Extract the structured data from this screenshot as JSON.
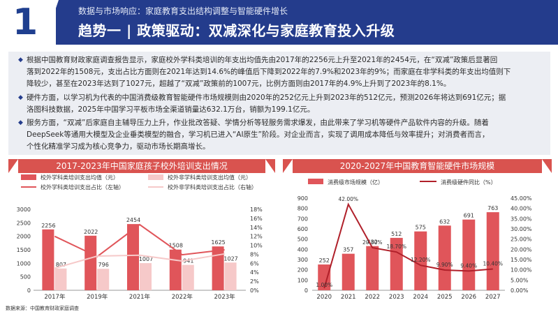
{
  "header": {
    "number": "1",
    "subtitle": "数据与市场响应：家庭教育支出结构调整与智能硬件增长",
    "title": "趋势一 | 政策驱动：双减深化与家庭教育投入升级"
  },
  "bullets": [
    {
      "line1": "根据中国教育财政家庭调查报告显示，家庭校外学科类培训的年支出均值先由2017年的2256元上升至2021年的2454元，在“双减”政策后显著回",
      "line2": "落到2022年的1508元，支出占比方面则在2021年达到14.6%的峰值后下降到2022年的7.9%和2023年的9%；而家庭在非学科类的年支出均值则下",
      "line3": "降较少，甚至在2023年达到了1027元，超越了“双减”政策前的1007元，比例方面则由2017年的4.9%上升到了2023年的8.1%。"
    },
    {
      "line1": "硬件方面，以学习机为代表的中国消费级教育智能硬件市场规模则由2020年的252亿元上升到2023年的512亿元，预测2026年将达到691亿元；据",
      "line2": "洛图科技数据，2025年中国学习平板市场全渠道销量达632.1万台，销额为199.1亿元。"
    },
    {
      "line1": "服务方面，“双减”后家庭自主辅导压力上升，作业批改答疑、学情分析等轻服务需求爆发，由此带来了学习机等硬件产品软件内容的升级。随着",
      "line2": "DeepSeek等通用大模型及企业垂类模型的融合，学习机已进入“AI原生”阶段。对企业而言，实现了调用成本降低与效率提升；对消费者而言，",
      "line3": "个性化精准学习成为核心竞争力，驱动市场长期高增长。"
    }
  ],
  "source": "数据来源：中国教育财政家庭调查",
  "chart_data": [
    {
      "type": "bar",
      "title": "2017-2023年中国家庭孩子校外培训支出情况",
      "categories": [
        "2017年",
        "2019年",
        "2021年",
        "2022年",
        "2023年"
      ],
      "series": [
        {
          "name": "校外学科类培训支出均值（元）",
          "kind": "bar",
          "axis": "left",
          "color": "#e0555a",
          "values": [
            2256,
            2022,
            2454,
            1508,
            1625
          ]
        },
        {
          "name": "校外非学科类培训支出均值（元）",
          "kind": "bar",
          "axis": "left",
          "color": "#f6c9c9",
          "values": [
            807,
            796,
            1007,
            941,
            1027
          ]
        },
        {
          "name": "校外学科类培训支出占比（左轴）",
          "kind": "line",
          "axis": "right",
          "color": "#e0555a",
          "values": [
            12.0,
            7.5,
            14.6,
            7.9,
            9.0
          ]
        },
        {
          "name": "校外非学科类培训支出占比（右轴）",
          "kind": "line",
          "axis": "right",
          "color": "#f6c9c9",
          "values": [
            4.9,
            7.6,
            7.8,
            6.5,
            8.1
          ]
        }
      ],
      "yticks_left": [
        "3000",
        "2500",
        "2000",
        "1500",
        "1000",
        "500",
        "0"
      ],
      "yticks_right": [
        "18%",
        "16%",
        "14%",
        "12%",
        "10%",
        "8%",
        "6%",
        "4%",
        "2%",
        "0%"
      ],
      "ylim": [
        0,
        3000
      ],
      "ylim_right": [
        0,
        18
      ],
      "legend": "top"
    },
    {
      "type": "bar",
      "title": "2020-2027年中国教育智能硬件市场规模",
      "categories": [
        "2020",
        "2021",
        "2022",
        "2023",
        "2024",
        "2025",
        "2026",
        "2027"
      ],
      "series": [
        {
          "name": "消费级市场规模（亿）",
          "kind": "bar",
          "axis": "left",
          "color": "#e0555a",
          "values": [
            252,
            357,
            432,
            512,
            575,
            632,
            691,
            763
          ]
        },
        {
          "name": "消费级硬件同比（%）",
          "kind": "line",
          "axis": "right",
          "color": "#b0202a",
          "values": [
            1.0,
            42.0,
            20.8,
            18.7,
            12.2,
            9.9,
            9.4,
            10.4
          ]
        }
      ],
      "bar_labels": [
        "252",
        "357",
        "432",
        "512",
        "575",
        "632",
        "691",
        "763"
      ],
      "line_labels": [
        "1.00%",
        "42.00%",
        "20.80%",
        "18.70%",
        "12.20%",
        "9.90%",
        "9.40%",
        "10.40%"
      ],
      "yticks_left": [
        "900",
        "800",
        "700",
        "600",
        "500",
        "400",
        "300",
        "200",
        "100",
        "0"
      ],
      "yticks_right": [
        "45.00%",
        "40.00%",
        "35.00%",
        "30.00%",
        "25.00%",
        "20.00%",
        "15.00%",
        "10.00%",
        "5.00%",
        "0.00%"
      ],
      "ylim": [
        0,
        900
      ],
      "ylim_right": [
        0,
        45
      ],
      "legend": "top"
    }
  ]
}
